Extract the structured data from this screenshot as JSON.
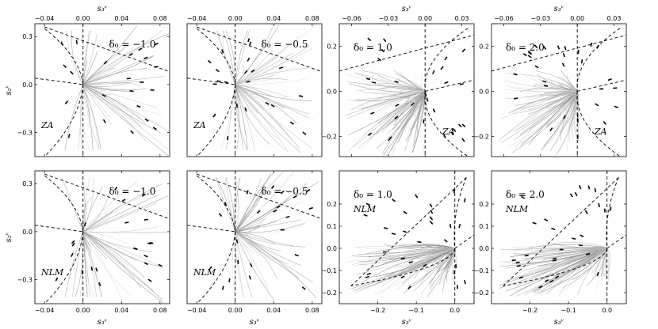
{
  "figure": {
    "x_axis_title": "s₃ᵛ",
    "y_axis_title": "s₂ᵛ"
  },
  "chart_data": [
    {
      "type": "line",
      "model": "ZA",
      "delta_label": "δ₀ = −1.0",
      "xlim": [
        -0.05,
        0.09
      ],
      "ylim": [
        -0.45,
        0.38
      ],
      "x_ticks": [
        -0.04,
        0.0,
        0.04,
        0.08
      ],
      "x_tick_labels": [
        "−0.04",
        "0.00",
        "0.04",
        "0.08"
      ],
      "y_ticks": [
        -0.3,
        0.0,
        0.3
      ],
      "y_tick_labels": [
        "−0.3",
        "0.0",
        "0.3"
      ],
      "label_pos": "bottom-left",
      "delta_pos": "top-right",
      "x_tick_side": "top",
      "show_xlabel": true,
      "show_ylabel": true,
      "show_yticks": true,
      "boundary": {
        "apex": [
          0.0,
          0.0
        ],
        "upper_end": [
          -0.04,
          0.35
        ],
        "lower_end": [
          -0.04,
          -0.45
        ],
        "line_a": [
          [
            -0.05,
            0.04
          ],
          [
            0.0,
            0.0
          ]
        ],
        "line_b": [
          [
            -0.04,
            0.36
          ],
          [
            0.09,
            0.08
          ]
        ],
        "vertical_x": 0.0
      },
      "attractor": [
        0.0,
        0.0
      ],
      "density": "sparse"
    },
    {
      "type": "line",
      "model": "ZA",
      "delta_label": "δ₀ = −0.5",
      "xlim": [
        -0.05,
        0.09
      ],
      "ylim": [
        -0.45,
        0.38
      ],
      "x_ticks": [
        -0.04,
        0.0,
        0.04,
        0.08
      ],
      "x_tick_labels": [
        "−0.04",
        "0.00",
        "0.04",
        "0.08"
      ],
      "y_ticks": [],
      "y_tick_labels": [],
      "label_pos": "bottom-left",
      "delta_pos": "top-right",
      "x_tick_side": "top",
      "show_xlabel": false,
      "show_ylabel": false,
      "show_yticks": false,
      "boundary": {
        "apex": [
          0.0,
          0.0
        ],
        "upper_end": [
          -0.04,
          0.35
        ],
        "lower_end": [
          -0.04,
          -0.45
        ],
        "line_a": [
          [
            -0.05,
            0.04
          ],
          [
            0.0,
            0.0
          ]
        ],
        "line_b": [
          [
            -0.04,
            0.36
          ],
          [
            0.09,
            0.08
          ]
        ],
        "vertical_x": 0.0
      },
      "attractor": [
        0.0,
        0.0
      ],
      "density": "sparse"
    },
    {
      "type": "line",
      "model": "ZA",
      "delta_label": "δ₀ = 1.0",
      "xlim": [
        -0.07,
        0.04
      ],
      "ylim": [
        -0.29,
        0.3
      ],
      "x_ticks": [
        -0.06,
        -0.03,
        0.0,
        0.03
      ],
      "x_tick_labels": [
        "−0.06",
        "−0.03",
        "0.00",
        "0.03"
      ],
      "y_ticks": [
        -0.2,
        0.0,
        0.2
      ],
      "y_tick_labels": [
        "−0.2",
        "0.0",
        "0.2"
      ],
      "label_pos": "bottom-right",
      "delta_pos": "top-left",
      "x_tick_side": "top",
      "show_xlabel": true,
      "show_ylabel": false,
      "show_yticks": true,
      "boundary": {
        "apex": [
          0.0,
          0.0
        ],
        "upper_end": [
          0.035,
          0.28
        ],
        "lower_end": [
          0.035,
          -0.29
        ],
        "line_a": [
          [
            -0.07,
            0.09
          ],
          [
            0.04,
            0.25
          ]
        ],
        "line_b": [
          [
            0.0,
            0.0
          ],
          [
            0.04,
            0.05
          ]
        ],
        "vertical_x": 0.0
      },
      "attractor": [
        0.0,
        0.0
      ],
      "density": "dense"
    },
    {
      "type": "line",
      "model": "ZA",
      "delta_label": "δ₀ = 2.0",
      "xlim": [
        -0.07,
        0.04
      ],
      "ylim": [
        -0.29,
        0.3
      ],
      "x_ticks": [
        -0.06,
        -0.03,
        0.0,
        0.03
      ],
      "x_tick_labels": [
        "−0.06",
        "−0.03",
        "0.00",
        "0.03"
      ],
      "y_ticks": [
        -0.2,
        0.0,
        0.2
      ],
      "y_tick_labels": [
        "−0.2",
        "0.0",
        "0.2"
      ],
      "label_pos": "bottom-right",
      "delta_pos": "top-left",
      "x_tick_side": "top",
      "show_xlabel": true,
      "show_ylabel": false,
      "show_yticks": true,
      "boundary": {
        "apex": [
          0.0,
          0.0
        ],
        "upper_end": [
          0.035,
          0.28
        ],
        "lower_end": [
          0.035,
          -0.29
        ],
        "line_a": [
          [
            -0.07,
            0.09
          ],
          [
            0.04,
            0.25
          ]
        ],
        "line_b": [
          [
            0.0,
            0.0
          ],
          [
            0.04,
            0.05
          ]
        ],
        "vertical_x": 0.0
      },
      "attractor": [
        0.0,
        0.0
      ],
      "density": "dense"
    },
    {
      "type": "line",
      "model": "NLM",
      "delta_label": "δ₀ = −1.0",
      "xlim": [
        -0.05,
        0.09
      ],
      "ylim": [
        -0.45,
        0.38
      ],
      "x_ticks": [
        -0.04,
        0.0,
        0.04,
        0.08
      ],
      "x_tick_labels": [
        "−0.04",
        "0.00",
        "0.04",
        "0.08"
      ],
      "y_ticks": [
        -0.3,
        0.0,
        0.3
      ],
      "y_tick_labels": [
        "−0.3",
        "0.0",
        "0.3"
      ],
      "label_pos": "bottom-left",
      "delta_pos": "top-right",
      "x_tick_side": "bottom",
      "show_xlabel": true,
      "show_ylabel": true,
      "show_yticks": true,
      "boundary": {
        "apex": [
          0.0,
          0.0
        ],
        "upper_end": [
          -0.04,
          0.35
        ],
        "lower_end": [
          -0.04,
          -0.45
        ],
        "line_a": [
          [
            -0.05,
            0.04
          ],
          [
            0.0,
            0.0
          ]
        ],
        "line_b": [
          [
            -0.04,
            0.36
          ],
          [
            0.09,
            0.08
          ]
        ],
        "vertical_x": 0.0
      },
      "attractor": [
        0.0,
        0.0
      ],
      "density": "sparse"
    },
    {
      "type": "line",
      "model": "NLM",
      "delta_label": "δ₀ = −0.5",
      "xlim": [
        -0.05,
        0.09
      ],
      "ylim": [
        -0.45,
        0.38
      ],
      "x_ticks": [
        -0.04,
        0.0,
        0.04,
        0.08
      ],
      "x_tick_labels": [
        "−0.04",
        "0.00",
        "0.04",
        "0.08"
      ],
      "y_ticks": [],
      "y_tick_labels": [],
      "label_pos": "bottom-left",
      "delta_pos": "top-right",
      "x_tick_side": "bottom",
      "show_xlabel": true,
      "show_ylabel": false,
      "show_yticks": false,
      "boundary": {
        "apex": [
          0.0,
          0.0
        ],
        "upper_end": [
          -0.04,
          0.35
        ],
        "lower_end": [
          -0.04,
          -0.45
        ],
        "line_a": [
          [
            -0.05,
            0.04
          ],
          [
            0.0,
            0.0
          ]
        ],
        "line_b": [
          [
            -0.04,
            0.36
          ],
          [
            0.09,
            0.08
          ]
        ],
        "vertical_x": 0.0
      },
      "attractor": [
        0.0,
        0.0
      ],
      "density": "sparse"
    },
    {
      "type": "line",
      "model": "NLM",
      "delta_label": "δ₀ = 1.0",
      "xlim": [
        -0.3,
        0.05
      ],
      "ylim": [
        -0.25,
        0.35
      ],
      "x_ticks": [
        -0.2,
        -0.1,
        0.0
      ],
      "x_tick_labels": [
        "−0.2",
        "−0.1",
        "0.0"
      ],
      "y_ticks": [
        -0.2,
        -0.1,
        0.0,
        0.1,
        0.2
      ],
      "y_tick_labels": [
        "−0.2",
        "−0.1",
        "0.0",
        "0.1",
        "0.2"
      ],
      "label_pos": "top-left",
      "delta_pos": "top-left",
      "x_tick_side": "bottom",
      "show_xlabel": true,
      "show_ylabel": false,
      "show_yticks": true,
      "boundary": {
        "apex": [
          0.0,
          0.0
        ],
        "upper_end": [
          0.03,
          0.32
        ],
        "lower_end": [
          -0.27,
          -0.17
        ],
        "line_a": [
          [
            -0.27,
            -0.17
          ],
          [
            0.03,
            0.32
          ]
        ],
        "line_b": [
          [
            0.0,
            0.0
          ],
          [
            0.05,
            0.06
          ]
        ],
        "vertical_x": 0.0
      },
      "attractor": [
        0.0,
        0.0
      ],
      "density": "nlm-dense"
    },
    {
      "type": "line",
      "model": "NLM",
      "delta_label": "δ₀ = 2.0",
      "xlim": [
        -0.3,
        0.05
      ],
      "ylim": [
        -0.25,
        0.35
      ],
      "x_ticks": [
        -0.2,
        -0.1,
        0.0
      ],
      "x_tick_labels": [
        "−0.2",
        "−0.1",
        "0.0"
      ],
      "y_ticks": [
        -0.2,
        -0.1,
        0.0,
        0.1,
        0.2
      ],
      "y_tick_labels": [
        "−0.2",
        "−0.1",
        "0.0",
        "0.1",
        "0.2"
      ],
      "label_pos": "top-left",
      "delta_pos": "top-left",
      "x_tick_side": "bottom",
      "show_xlabel": true,
      "show_ylabel": false,
      "show_yticks": true,
      "boundary": {
        "apex": [
          0.0,
          0.0
        ],
        "upper_end": [
          0.03,
          0.32
        ],
        "lower_end": [
          -0.27,
          -0.17
        ],
        "line_a": [
          [
            -0.27,
            -0.17
          ],
          [
            0.03,
            0.32
          ]
        ],
        "line_b": [
          [
            0.0,
            0.0
          ],
          [
            0.05,
            0.06
          ]
        ],
        "vertical_x": 0.0
      },
      "attractor": [
        0.0,
        0.0
      ],
      "density": "nlm-dense"
    }
  ]
}
